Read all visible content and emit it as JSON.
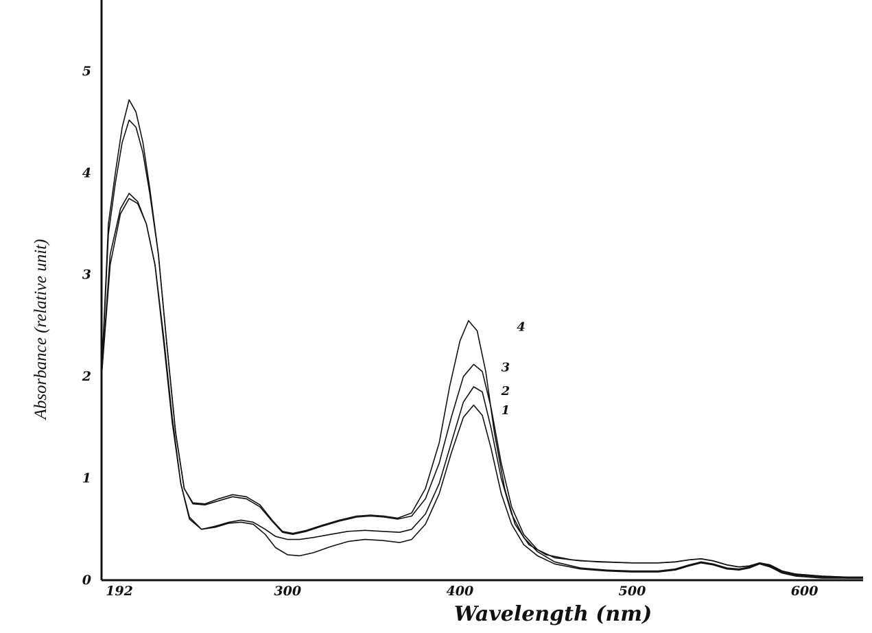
{
  "chart_data": {
    "type": "line",
    "title": "",
    "xlabel": "Wavelength (nm)",
    "ylabel": "Absorbance (relative unit)",
    "xlim": [
      192,
      634
    ],
    "ylim": [
      0,
      5.7
    ],
    "x_ticks": [
      192,
      300,
      400,
      500,
      600
    ],
    "y_ticks": [
      0,
      1,
      2,
      3,
      4,
      5
    ],
    "grid": false,
    "legend": "inline curve labels near 410 nm",
    "series": [
      {
        "name": "1",
        "points": [
          [
            192,
            2.0
          ],
          [
            197,
            3.1
          ],
          [
            203,
            3.6
          ],
          [
            208,
            3.75
          ],
          [
            213,
            3.7
          ],
          [
            218,
            3.5
          ],
          [
            223,
            3.1
          ],
          [
            228,
            2.4
          ],
          [
            233,
            1.6
          ],
          [
            238,
            0.95
          ],
          [
            243,
            0.6
          ],
          [
            250,
            0.5
          ],
          [
            258,
            0.52
          ],
          [
            266,
            0.56
          ],
          [
            273,
            0.57
          ],
          [
            280,
            0.55
          ],
          [
            287,
            0.45
          ],
          [
            293,
            0.32
          ],
          [
            300,
            0.25
          ],
          [
            307,
            0.24
          ],
          [
            315,
            0.27
          ],
          [
            325,
            0.33
          ],
          [
            335,
            0.38
          ],
          [
            345,
            0.4
          ],
          [
            355,
            0.39
          ],
          [
            365,
            0.37
          ],
          [
            372,
            0.4
          ],
          [
            380,
            0.55
          ],
          [
            388,
            0.85
          ],
          [
            395,
            1.25
          ],
          [
            402,
            1.6
          ],
          [
            408,
            1.72
          ],
          [
            413,
            1.62
          ],
          [
            418,
            1.3
          ],
          [
            424,
            0.85
          ],
          [
            430,
            0.55
          ],
          [
            437,
            0.35
          ],
          [
            445,
            0.24
          ],
          [
            455,
            0.16
          ],
          [
            470,
            0.11
          ],
          [
            485,
            0.09
          ],
          [
            500,
            0.08
          ],
          [
            515,
            0.08
          ],
          [
            525,
            0.1
          ],
          [
            533,
            0.14
          ],
          [
            540,
            0.17
          ],
          [
            547,
            0.15
          ],
          [
            555,
            0.11
          ],
          [
            562,
            0.1
          ],
          [
            568,
            0.12
          ],
          [
            574,
            0.16
          ],
          [
            580,
            0.13
          ],
          [
            587,
            0.07
          ],
          [
            595,
            0.04
          ],
          [
            610,
            0.02
          ],
          [
            625,
            0.02
          ],
          [
            634,
            0.02
          ]
        ]
      },
      {
        "name": "2",
        "points": [
          [
            192,
            2.0
          ],
          [
            197,
            3.2
          ],
          [
            203,
            3.65
          ],
          [
            208,
            3.8
          ],
          [
            213,
            3.72
          ],
          [
            218,
            3.5
          ],
          [
            223,
            3.1
          ],
          [
            228,
            2.35
          ],
          [
            233,
            1.55
          ],
          [
            238,
            0.95
          ],
          [
            243,
            0.62
          ],
          [
            250,
            0.5
          ],
          [
            258,
            0.53
          ],
          [
            266,
            0.57
          ],
          [
            273,
            0.59
          ],
          [
            280,
            0.57
          ],
          [
            287,
            0.5
          ],
          [
            293,
            0.43
          ],
          [
            300,
            0.4
          ],
          [
            307,
            0.4
          ],
          [
            315,
            0.42
          ],
          [
            325,
            0.45
          ],
          [
            335,
            0.48
          ],
          [
            345,
            0.49
          ],
          [
            355,
            0.48
          ],
          [
            365,
            0.47
          ],
          [
            372,
            0.5
          ],
          [
            380,
            0.65
          ],
          [
            388,
            0.95
          ],
          [
            395,
            1.35
          ],
          [
            402,
            1.75
          ],
          [
            408,
            1.9
          ],
          [
            413,
            1.85
          ],
          [
            418,
            1.5
          ],
          [
            424,
            1.0
          ],
          [
            430,
            0.65
          ],
          [
            437,
            0.42
          ],
          [
            445,
            0.28
          ],
          [
            455,
            0.18
          ],
          [
            470,
            0.12
          ],
          [
            485,
            0.1
          ],
          [
            500,
            0.09
          ],
          [
            515,
            0.09
          ],
          [
            525,
            0.11
          ],
          [
            533,
            0.15
          ],
          [
            540,
            0.18
          ],
          [
            547,
            0.16
          ],
          [
            555,
            0.12
          ],
          [
            562,
            0.11
          ],
          [
            568,
            0.13
          ],
          [
            574,
            0.17
          ],
          [
            580,
            0.14
          ],
          [
            587,
            0.08
          ],
          [
            595,
            0.05
          ],
          [
            610,
            0.03
          ],
          [
            625,
            0.02
          ],
          [
            634,
            0.02
          ]
        ]
      },
      {
        "name": "3",
        "points": [
          [
            192,
            2.0
          ],
          [
            196,
            3.4
          ],
          [
            200,
            3.9
          ],
          [
            204,
            4.3
          ],
          [
            208,
            4.52
          ],
          [
            212,
            4.45
          ],
          [
            216,
            4.2
          ],
          [
            220,
            3.8
          ],
          [
            225,
            3.2
          ],
          [
            230,
            2.3
          ],
          [
            235,
            1.45
          ],
          [
            240,
            0.9
          ],
          [
            245,
            0.75
          ],
          [
            252,
            0.74
          ],
          [
            260,
            0.78
          ],
          [
            268,
            0.82
          ],
          [
            276,
            0.8
          ],
          [
            284,
            0.72
          ],
          [
            291,
            0.58
          ],
          [
            297,
            0.47
          ],
          [
            303,
            0.45
          ],
          [
            311,
            0.48
          ],
          [
            320,
            0.53
          ],
          [
            330,
            0.58
          ],
          [
            340,
            0.62
          ],
          [
            348,
            0.63
          ],
          [
            356,
            0.62
          ],
          [
            364,
            0.6
          ],
          [
            372,
            0.63
          ],
          [
            380,
            0.8
          ],
          [
            388,
            1.15
          ],
          [
            395,
            1.6
          ],
          [
            402,
            2.0
          ],
          [
            408,
            2.12
          ],
          [
            413,
            2.05
          ],
          [
            418,
            1.7
          ],
          [
            424,
            1.15
          ],
          [
            430,
            0.72
          ],
          [
            437,
            0.45
          ],
          [
            445,
            0.3
          ],
          [
            455,
            0.22
          ],
          [
            470,
            0.19
          ],
          [
            485,
            0.18
          ],
          [
            500,
            0.17
          ],
          [
            515,
            0.17
          ],
          [
            525,
            0.18
          ],
          [
            533,
            0.2
          ],
          [
            540,
            0.21
          ],
          [
            547,
            0.19
          ],
          [
            555,
            0.15
          ],
          [
            562,
            0.13
          ],
          [
            568,
            0.14
          ],
          [
            574,
            0.17
          ],
          [
            580,
            0.15
          ],
          [
            587,
            0.09
          ],
          [
            595,
            0.06
          ],
          [
            610,
            0.04
          ],
          [
            625,
            0.03
          ],
          [
            634,
            0.03
          ]
        ]
      },
      {
        "name": "4",
        "points": [
          [
            192,
            2.0
          ],
          [
            196,
            3.5
          ],
          [
            200,
            4.0
          ],
          [
            204,
            4.45
          ],
          [
            208,
            4.72
          ],
          [
            212,
            4.6
          ],
          [
            216,
            4.3
          ],
          [
            220,
            3.85
          ],
          [
            225,
            3.2
          ],
          [
            230,
            2.3
          ],
          [
            235,
            1.45
          ],
          [
            240,
            0.9
          ],
          [
            245,
            0.76
          ],
          [
            252,
            0.75
          ],
          [
            260,
            0.8
          ],
          [
            268,
            0.84
          ],
          [
            276,
            0.82
          ],
          [
            284,
            0.74
          ],
          [
            291,
            0.59
          ],
          [
            297,
            0.48
          ],
          [
            303,
            0.46
          ],
          [
            311,
            0.49
          ],
          [
            320,
            0.54
          ],
          [
            330,
            0.59
          ],
          [
            340,
            0.63
          ],
          [
            348,
            0.64
          ],
          [
            356,
            0.63
          ],
          [
            364,
            0.61
          ],
          [
            372,
            0.66
          ],
          [
            380,
            0.9
          ],
          [
            388,
            1.35
          ],
          [
            394,
            1.9
          ],
          [
            400,
            2.35
          ],
          [
            405,
            2.55
          ],
          [
            410,
            2.45
          ],
          [
            415,
            2.05
          ],
          [
            420,
            1.45
          ],
          [
            426,
            0.9
          ],
          [
            432,
            0.55
          ],
          [
            440,
            0.35
          ],
          [
            450,
            0.25
          ],
          [
            465,
            0.2
          ],
          [
            480,
            0.18
          ],
          [
            500,
            0.17
          ],
          [
            515,
            0.17
          ],
          [
            525,
            0.18
          ],
          [
            533,
            0.2
          ],
          [
            540,
            0.21
          ],
          [
            547,
            0.19
          ],
          [
            555,
            0.15
          ],
          [
            562,
            0.13
          ],
          [
            568,
            0.14
          ],
          [
            574,
            0.17
          ],
          [
            580,
            0.15
          ],
          [
            587,
            0.09
          ],
          [
            595,
            0.06
          ],
          [
            610,
            0.04
          ],
          [
            625,
            0.03
          ],
          [
            634,
            0.03
          ]
        ]
      }
    ]
  }
}
